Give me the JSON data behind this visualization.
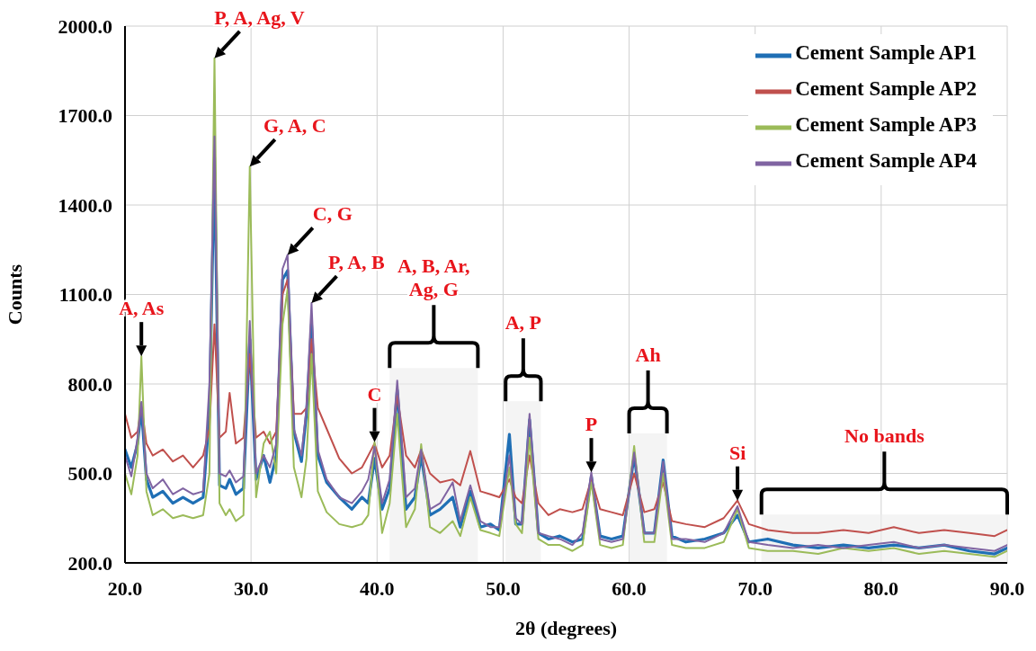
{
  "chart_data": {
    "type": "line",
    "xlabel": "2θ (degrees)",
    "ylabel": "Counts",
    "x": [
      20,
      20.5,
      21,
      21.3,
      21.7,
      22.2,
      23,
      23.8,
      24.6,
      25.4,
      26.2,
      26.7,
      27.1,
      27.5,
      28,
      28.3,
      28.8,
      29.4,
      29.9,
      30.4,
      31,
      31.5,
      32,
      32.5,
      32.9,
      33.4,
      34,
      34.4,
      34.8,
      35.3,
      36,
      37,
      38,
      38.8,
      39.3,
      39.8,
      40.4,
      41,
      41.6,
      42.3,
      43,
      43.5,
      44.2,
      45,
      46,
      46.6,
      47.4,
      48.2,
      49,
      49.7,
      50.5,
      51,
      51.5,
      52.1,
      52.8,
      53.6,
      54.5,
      55.5,
      56.3,
      57,
      57.7,
      58.6,
      59.5,
      60.4,
      61.2,
      62,
      62.7,
      63.4,
      64.5,
      66,
      67.5,
      68.6,
      69.5,
      71,
      73,
      75,
      77,
      79,
      81,
      83,
      85,
      87,
      89,
      90
    ],
    "series": [
      {
        "name": "Cement Sample AP1",
        "color": "#1f6fb5",
        "values": [
          580,
          520,
          600,
          720,
          480,
          420,
          440,
          400,
          420,
          400,
          420,
          700,
          1560,
          460,
          450,
          480,
          430,
          450,
          950,
          480,
          560,
          470,
          560,
          1150,
          1180,
          640,
          540,
          700,
          1000,
          560,
          470,
          420,
          380,
          420,
          400,
          550,
          380,
          450,
          780,
          380,
          420,
          560,
          360,
          380,
          420,
          320,
          440,
          320,
          330,
          310,
          631,
          330,
          330,
          680,
          300,
          280,
          290,
          270,
          280,
          490,
          290,
          280,
          290,
          560,
          300,
          300,
          545,
          290,
          270,
          280,
          300,
          360,
          270,
          280,
          260,
          250,
          260,
          250,
          260,
          250,
          260,
          240,
          230,
          250
        ]
      },
      {
        "name": "Cement Sample AP2",
        "color": "#c0504d",
        "values": [
          700,
          620,
          640,
          730,
          600,
          560,
          580,
          540,
          560,
          520,
          560,
          650,
          1000,
          620,
          640,
          770,
          600,
          620,
          900,
          620,
          640,
          600,
          640,
          1100,
          1150,
          700,
          700,
          720,
          950,
          720,
          650,
          550,
          500,
          520,
          560,
          600,
          520,
          560,
          760,
          560,
          520,
          580,
          500,
          470,
          480,
          460,
          575,
          440,
          430,
          420,
          480,
          420,
          400,
          560,
          400,
          360,
          380,
          370,
          380,
          480,
          380,
          370,
          360,
          500,
          370,
          380,
          470,
          340,
          330,
          320,
          350,
          409,
          330,
          310,
          300,
          300,
          310,
          300,
          320,
          300,
          310,
          300,
          290,
          310
        ]
      },
      {
        "name": "Cement Sample AP3",
        "color": "#9bbb59",
        "values": [
          500,
          430,
          560,
          893,
          440,
          360,
          380,
          350,
          360,
          350,
          360,
          500,
          1892,
          400,
          360,
          380,
          340,
          360,
          1529,
          420,
          600,
          640,
          500,
          1000,
          1118,
          520,
          420,
          550,
          900,
          440,
          370,
          330,
          320,
          330,
          360,
          605,
          300,
          400,
          700,
          320,
          380,
          598,
          320,
          300,
          340,
          290,
          420,
          310,
          300,
          290,
          520,
          330,
          300,
          620,
          280,
          260,
          260,
          240,
          260,
          470,
          260,
          250,
          260,
          592,
          270,
          270,
          500,
          260,
          250,
          250,
          270,
          380,
          250,
          240,
          240,
          230,
          250,
          240,
          250,
          230,
          240,
          230,
          220,
          240
        ]
      },
      {
        "name": "Cement Sample AP4",
        "color": "#8064a2",
        "values": [
          560,
          490,
          620,
          740,
          500,
          450,
          480,
          430,
          450,
          430,
          440,
          800,
          1630,
          500,
          490,
          510,
          470,
          490,
          1011,
          500,
          560,
          520,
          600,
          1186,
          1233,
          650,
          560,
          720,
          1071,
          580,
          480,
          420,
          400,
          440,
          480,
          590,
          400,
          480,
          811,
          420,
          450,
          580,
          380,
          400,
          470,
          340,
          460,
          340,
          320,
          320,
          560,
          350,
          330,
          700,
          300,
          290,
          280,
          260,
          300,
          504,
          280,
          270,
          280,
          570,
          300,
          300,
          540,
          280,
          280,
          270,
          300,
          390,
          270,
          260,
          250,
          260,
          250,
          260,
          270,
          250,
          260,
          250,
          240,
          260
        ]
      }
    ],
    "xlim": [
      20,
      90
    ],
    "xticks": [
      {
        "value": 20,
        "label": "20.0"
      },
      {
        "value": 30,
        "label": "30.0"
      },
      {
        "value": 40,
        "label": "40.0"
      },
      {
        "value": 50,
        "label": "50.0"
      },
      {
        "value": 60,
        "label": "60.0"
      },
      {
        "value": 70,
        "label": "70.0"
      },
      {
        "value": 80,
        "label": "80.0"
      },
      {
        "value": 90,
        "label": "90.0"
      }
    ],
    "ylim": [
      200,
      2000
    ],
    "yticks": [
      {
        "value": 200,
        "label": "200.0"
      },
      {
        "value": 500,
        "label": "500.0"
      },
      {
        "value": 800,
        "label": "800.0"
      },
      {
        "value": 1100,
        "label": "1100.0"
      },
      {
        "value": 1400,
        "label": "1400.0"
      },
      {
        "value": 1700,
        "label": "1700.0"
      },
      {
        "value": 2000,
        "label": "2000.0"
      }
    ],
    "grid": true,
    "legend": "top right",
    "marker": "none",
    "line_style": "solid",
    "annotations": [
      {
        "text": "A, As",
        "x": 21.3,
        "y": 893
      },
      {
        "text": "P, A, Ag, V",
        "x": 27.1,
        "y": 1892
      },
      {
        "text": "G, A, C",
        "x": 29.9,
        "y": 1529
      },
      {
        "text": "C, G",
        "x": 32.9,
        "y": 1233
      },
      {
        "text": "P, A, B",
        "x": 34.8,
        "y": 1071
      },
      {
        "text": "C",
        "x": 39.8,
        "y": 605
      },
      {
        "text": "P",
        "x": 57,
        "y": 504
      },
      {
        "text": "Si",
        "x": 68.6,
        "y": 409
      }
    ],
    "bands": [
      {
        "axis": "x",
        "from": 41,
        "to": 48,
        "label": "A, B, Ar,\nAg, G",
        "color": "#ececec"
      },
      {
        "axis": "x",
        "from": 50.2,
        "to": 53,
        "label": "A, P",
        "color": "#ececec"
      },
      {
        "axis": "x",
        "from": 60,
        "to": 63,
        "label": "Ah",
        "color": "#ececec"
      },
      {
        "axis": "x",
        "from": 70.5,
        "to": 90,
        "label": "No bands",
        "color": "#ececec"
      }
    ]
  }
}
